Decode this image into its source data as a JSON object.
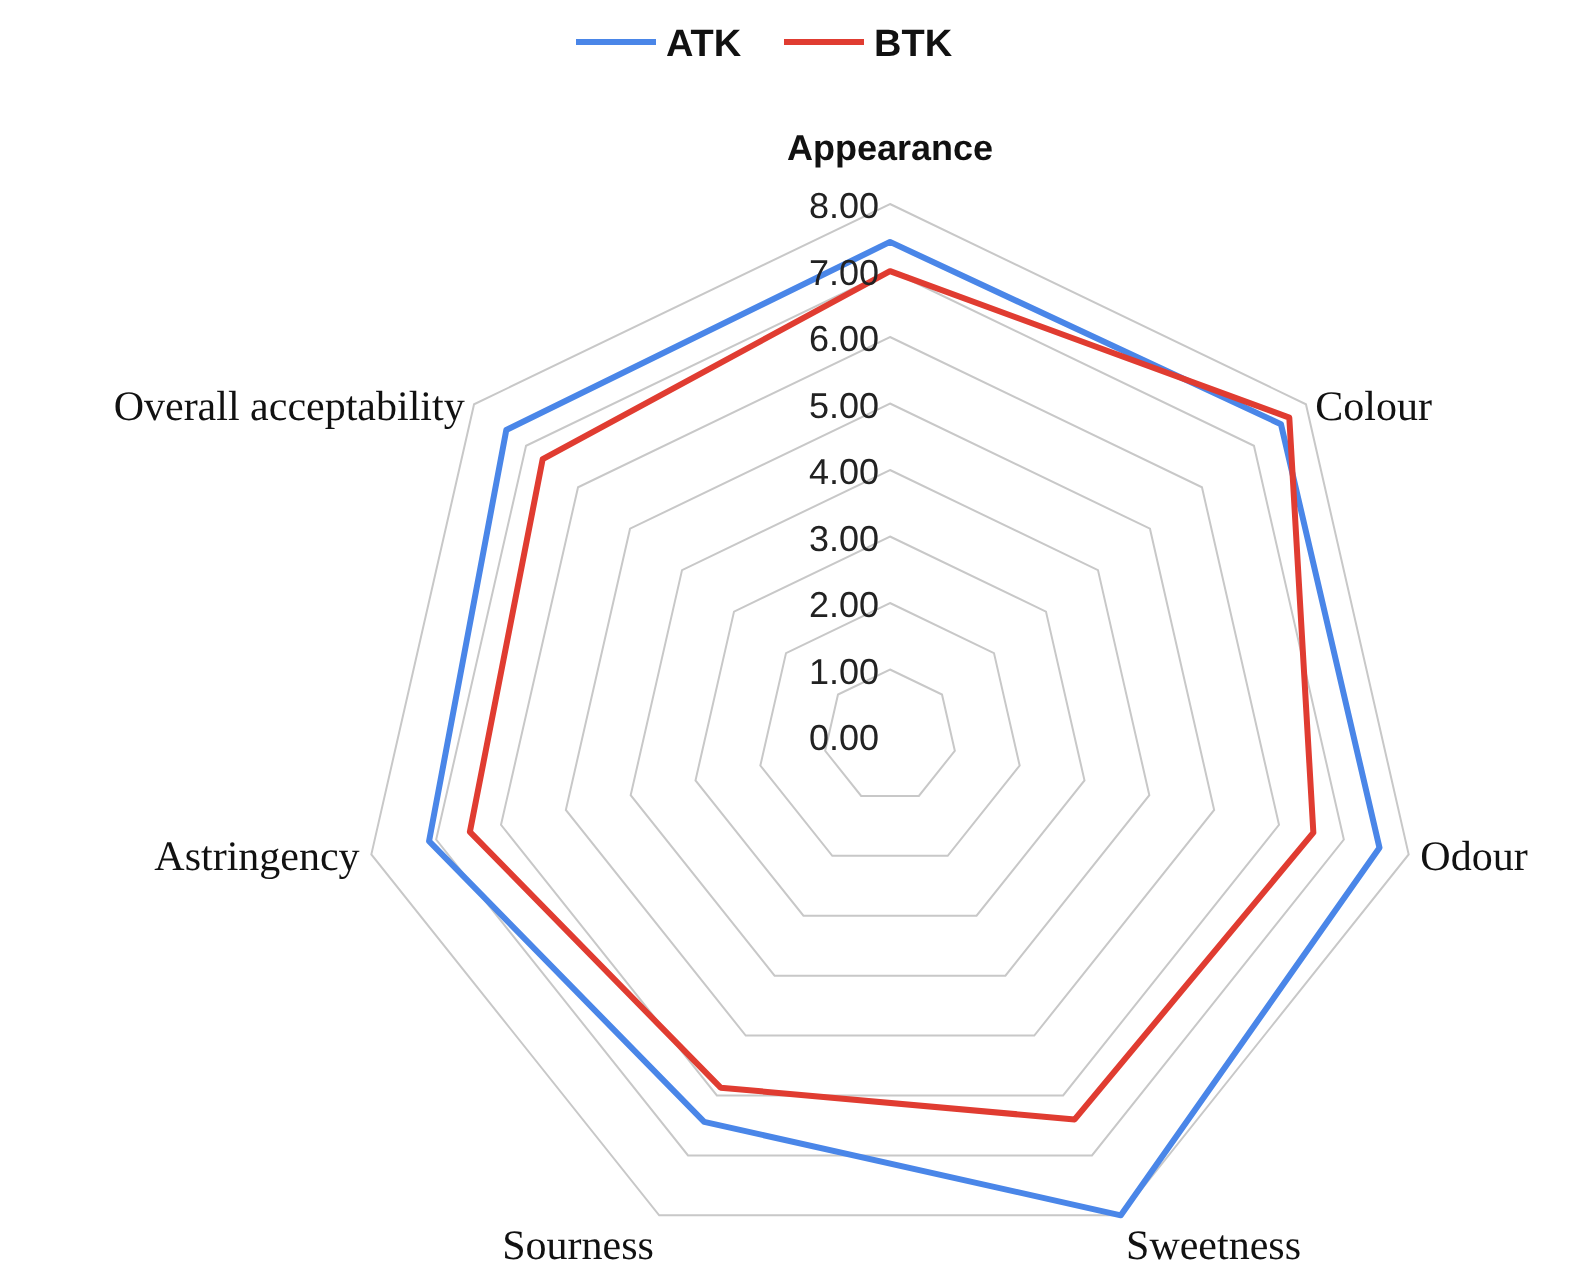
{
  "chart_data": {
    "type": "radar",
    "categories": [
      "Appearance",
      "Colour",
      "Odour",
      "Sweetness",
      "Sourness",
      "Astringency",
      "Overall acceptability"
    ],
    "series": [
      {
        "name": "ATK",
        "color": "#4a86e8",
        "values": [
          7.43,
          7.52,
          7.55,
          8.0,
          6.44,
          7.11,
          7.38
        ]
      },
      {
        "name": "BTK",
        "color": "#e03c31",
        "values": [
          6.99,
          7.68,
          6.53,
          6.4,
          5.87,
          6.48,
          6.68
        ]
      }
    ],
    "ylim": [
      0,
      8
    ],
    "yticks": [
      {
        "value": 0,
        "label": "0.00"
      },
      {
        "value": 1,
        "label": "1.00"
      },
      {
        "value": 2,
        "label": "2.00"
      },
      {
        "value": 3,
        "label": "3.00"
      },
      {
        "value": 4,
        "label": "4.00"
      },
      {
        "value": 5,
        "label": "5.00"
      },
      {
        "value": 6,
        "label": "6.00"
      },
      {
        "value": 7,
        "label": "7.00"
      },
      {
        "value": 8,
        "label": "8.00"
      }
    ],
    "legend": "top",
    "grid": true
  }
}
